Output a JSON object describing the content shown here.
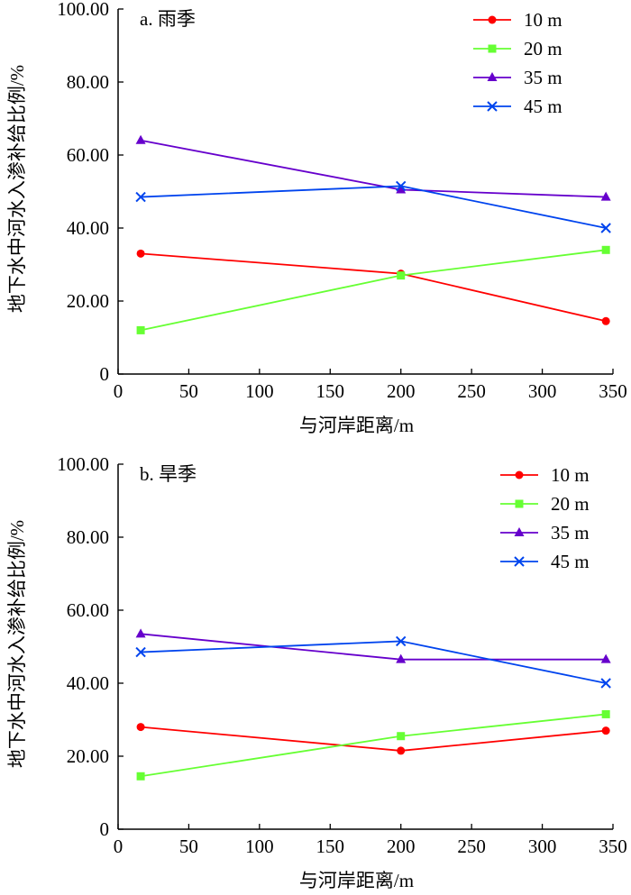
{
  "chart_data": [
    {
      "type": "line",
      "panel_title": "a. 雨季",
      "xlabel": "与河岸距离/m",
      "ylabel": "地下水中河水入渗补给比例/%",
      "xlim": [
        0,
        350
      ],
      "ylim": [
        0,
        100
      ],
      "xticks": [
        0,
        50,
        100,
        150,
        200,
        250,
        300,
        350
      ],
      "xtick_labels": [
        "0",
        "50",
        "100",
        "150",
        "200",
        "250",
        "300",
        "350"
      ],
      "yticks": [
        0,
        20,
        40,
        60,
        80,
        100
      ],
      "ytick_labels": [
        "0",
        "20.00",
        "40.00",
        "60.00",
        "80.00",
        "100.00"
      ],
      "x": [
        16,
        200,
        345
      ],
      "legend_position": "top-right",
      "series": [
        {
          "name": "10 m",
          "values": [
            33.0,
            27.5,
            14.5
          ],
          "color": "#ff0000",
          "marker": "circle"
        },
        {
          "name": "20 m",
          "values": [
            12.0,
            27.0,
            34.0
          ],
          "color": "#66ff33",
          "marker": "square"
        },
        {
          "name": "35 m",
          "values": [
            64.0,
            50.5,
            48.5
          ],
          "color": "#6600cc",
          "marker": "triangle"
        },
        {
          "name": "45 m",
          "values": [
            48.5,
            51.5,
            40.0
          ],
          "color": "#0044ee",
          "marker": "x"
        }
      ]
    },
    {
      "type": "line",
      "panel_title": "b. 旱季",
      "xlabel": "与河岸距离/m",
      "ylabel": "地下水中河水入渗补给比例/%",
      "xlim": [
        0,
        350
      ],
      "ylim": [
        0,
        100
      ],
      "xticks": [
        0,
        50,
        100,
        150,
        200,
        250,
        300,
        350
      ],
      "xtick_labels": [
        "0",
        "50",
        "100",
        "150",
        "200",
        "250",
        "300",
        "350"
      ],
      "yticks": [
        0,
        20,
        40,
        60,
        80,
        100
      ],
      "ytick_labels": [
        "0",
        "20.00",
        "40.00",
        "60.00",
        "80.00",
        "100.00"
      ],
      "x": [
        16,
        200,
        345
      ],
      "legend_position": "top-right",
      "series": [
        {
          "name": "10 m",
          "values": [
            28.0,
            21.5,
            27.0
          ],
          "color": "#ff0000",
          "marker": "circle"
        },
        {
          "name": "20 m",
          "values": [
            14.5,
            25.5,
            31.5
          ],
          "color": "#66ff33",
          "marker": "square"
        },
        {
          "name": "35 m",
          "values": [
            53.5,
            46.5,
            46.5
          ],
          "color": "#6600cc",
          "marker": "triangle"
        },
        {
          "name": "45 m",
          "values": [
            48.5,
            51.5,
            40.0
          ],
          "color": "#0044ee",
          "marker": "x"
        }
      ]
    }
  ]
}
